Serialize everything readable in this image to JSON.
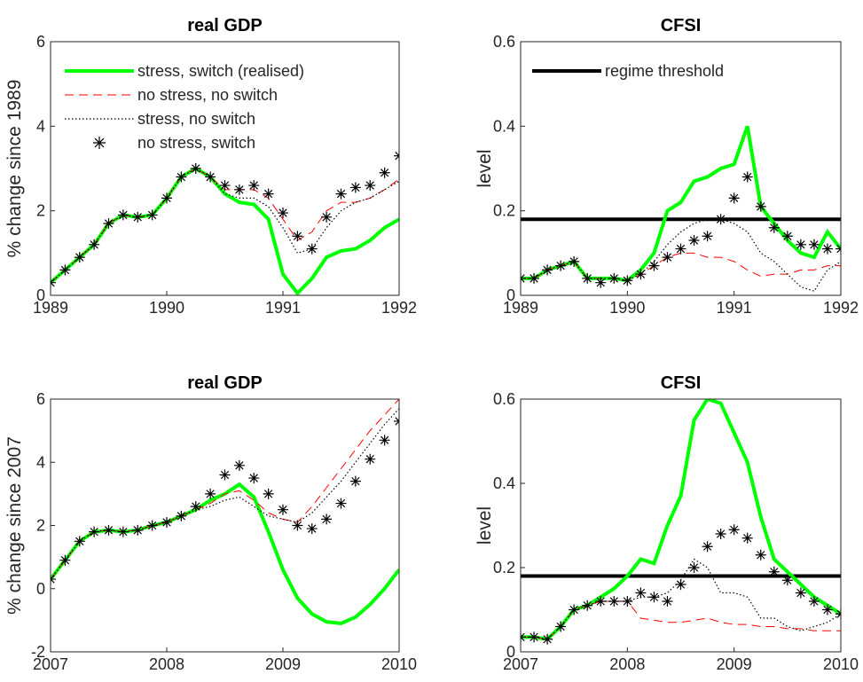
{
  "chart_data": [
    {
      "type": "line",
      "title": "real GDP",
      "ylabel": "% change since 1989",
      "x": [
        1989,
        1989.125,
        1989.25,
        1989.375,
        1989.5,
        1989.625,
        1989.75,
        1989.875,
        1990,
        1990.125,
        1990.25,
        1990.375,
        1990.5,
        1990.625,
        1990.75,
        1990.875,
        1991,
        1991.125,
        1991.25,
        1991.375,
        1991.5,
        1991.625,
        1991.75,
        1991.875,
        1992
      ],
      "xlim": [
        1989,
        1992
      ],
      "xticks": [
        1989,
        1990,
        1991,
        1992
      ],
      "ylim": [
        0,
        6
      ],
      "yticks": [
        0,
        2,
        4,
        6
      ],
      "legend": "upper left",
      "series": [
        {
          "name": "stress, switch (realised)",
          "color": "#00ff00",
          "style": "solid",
          "values": [
            0.3,
            0.6,
            0.9,
            1.2,
            1.7,
            1.9,
            1.85,
            1.9,
            2.3,
            2.8,
            3.0,
            2.8,
            2.4,
            2.2,
            2.15,
            1.8,
            0.5,
            0.05,
            0.4,
            0.9,
            1.05,
            1.1,
            1.3,
            1.6,
            1.8
          ]
        },
        {
          "name": "no stress, no switch",
          "color": "#ff0000",
          "style": "dashed",
          "values": [
            0.3,
            0.6,
            0.9,
            1.2,
            1.7,
            1.9,
            1.85,
            1.9,
            2.3,
            2.8,
            3.0,
            2.8,
            2.5,
            2.5,
            2.5,
            2.3,
            1.8,
            1.3,
            1.5,
            2.0,
            2.2,
            2.2,
            2.3,
            2.5,
            2.75
          ]
        },
        {
          "name": "stress, no switch",
          "color": "#000000",
          "style": "dotted",
          "values": [
            0.3,
            0.6,
            0.9,
            1.2,
            1.7,
            1.9,
            1.85,
            1.9,
            2.3,
            2.8,
            3.0,
            2.8,
            2.4,
            2.3,
            2.3,
            2.1,
            1.6,
            1.0,
            1.1,
            1.6,
            2.0,
            2.2,
            2.3,
            2.5,
            2.7
          ]
        },
        {
          "name": "no stress, switch",
          "color": "#000000",
          "style": "marker",
          "values": [
            0.3,
            0.6,
            0.9,
            1.2,
            1.7,
            1.9,
            1.85,
            1.9,
            2.3,
            2.8,
            3.0,
            2.8,
            2.6,
            2.5,
            2.6,
            2.4,
            1.95,
            1.4,
            1.1,
            1.85,
            2.4,
            2.55,
            2.6,
            2.9,
            3.3
          ]
        }
      ]
    },
    {
      "type": "line",
      "title": "CFSI",
      "ylabel": "level",
      "x": [
        1989,
        1989.125,
        1989.25,
        1989.375,
        1989.5,
        1989.625,
        1989.75,
        1989.875,
        1990,
        1990.125,
        1990.25,
        1990.375,
        1990.5,
        1990.625,
        1990.75,
        1990.875,
        1991,
        1991.125,
        1991.25,
        1991.375,
        1991.5,
        1991.625,
        1991.75,
        1991.875,
        1992
      ],
      "xlim": [
        1989,
        1992
      ],
      "xticks": [
        1989,
        1990,
        1991,
        1992
      ],
      "ylim": [
        0,
        0.6
      ],
      "yticks": [
        0,
        0.2,
        0.4,
        0.6
      ],
      "legend": "upper left",
      "threshold": {
        "name": "regime threshold",
        "value": 0.18,
        "color": "#000000"
      },
      "series": [
        {
          "color": "#00ff00",
          "style": "solid",
          "values": [
            0.04,
            0.04,
            0.06,
            0.07,
            0.08,
            0.04,
            0.04,
            0.04,
            0.035,
            0.06,
            0.1,
            0.2,
            0.22,
            0.27,
            0.28,
            0.3,
            0.31,
            0.4,
            0.21,
            0.17,
            0.13,
            0.1,
            0.09,
            0.15,
            0.11
          ]
        },
        {
          "color": "#ff0000",
          "style": "dashed",
          "values": [
            0.04,
            0.04,
            0.06,
            0.07,
            0.08,
            0.04,
            0.04,
            0.04,
            0.035,
            0.05,
            0.07,
            0.09,
            0.1,
            0.1,
            0.09,
            0.09,
            0.08,
            0.06,
            0.045,
            0.05,
            0.05,
            0.06,
            0.06,
            0.07,
            0.07
          ]
        },
        {
          "color": "#000000",
          "style": "dotted",
          "values": [
            0.04,
            0.04,
            0.06,
            0.07,
            0.08,
            0.04,
            0.04,
            0.04,
            0.035,
            0.05,
            0.08,
            0.12,
            0.15,
            0.17,
            0.18,
            0.18,
            0.17,
            0.15,
            0.1,
            0.08,
            0.05,
            0.02,
            0.01,
            0.06,
            0.08
          ]
        },
        {
          "color": "#000000",
          "style": "marker",
          "values": [
            0.04,
            0.04,
            0.06,
            0.07,
            0.08,
            0.04,
            0.03,
            0.04,
            0.035,
            0.05,
            0.07,
            0.09,
            0.11,
            0.13,
            0.14,
            0.18,
            0.23,
            0.28,
            0.21,
            0.16,
            0.14,
            0.12,
            0.12,
            0.11,
            0.11
          ]
        }
      ]
    },
    {
      "type": "line",
      "title": "real GDP",
      "ylabel": "% change since 2007",
      "x": [
        2007,
        2007.125,
        2007.25,
        2007.375,
        2007.5,
        2007.625,
        2007.75,
        2007.875,
        2008,
        2008.125,
        2008.25,
        2008.375,
        2008.5,
        2008.625,
        2008.75,
        2008.875,
        2009,
        2009.125,
        2009.25,
        2009.375,
        2009.5,
        2009.625,
        2009.75,
        2009.875,
        2010
      ],
      "xlim": [
        2007,
        2010
      ],
      "xticks": [
        2007,
        2008,
        2009,
        2010
      ],
      "ylim": [
        -2,
        6
      ],
      "yticks": [
        -2,
        0,
        2,
        4,
        6
      ],
      "series": [
        {
          "color": "#00ff00",
          "style": "solid",
          "values": [
            0.3,
            0.9,
            1.5,
            1.8,
            1.85,
            1.8,
            1.85,
            2.0,
            2.1,
            2.3,
            2.5,
            2.8,
            3.0,
            3.3,
            2.9,
            1.8,
            0.6,
            -0.3,
            -0.8,
            -1.05,
            -1.1,
            -0.9,
            -0.5,
            0.0,
            0.6
          ]
        },
        {
          "color": "#ff0000",
          "style": "dashed",
          "values": [
            0.3,
            0.9,
            1.5,
            1.8,
            1.85,
            1.8,
            1.85,
            2.0,
            2.1,
            2.3,
            2.5,
            2.7,
            3.0,
            3.1,
            2.8,
            2.4,
            2.2,
            2.1,
            2.6,
            3.2,
            3.8,
            4.4,
            5.0,
            5.5,
            6.0
          ]
        },
        {
          "color": "#000000",
          "style": "dotted",
          "values": [
            0.3,
            0.9,
            1.5,
            1.8,
            1.85,
            1.8,
            1.85,
            2.0,
            2.1,
            2.3,
            2.5,
            2.6,
            2.8,
            2.9,
            2.6,
            2.3,
            2.2,
            2.1,
            2.4,
            2.9,
            3.4,
            4.0,
            4.6,
            5.2,
            5.7
          ]
        },
        {
          "color": "#000000",
          "style": "marker",
          "values": [
            0.3,
            0.9,
            1.5,
            1.8,
            1.85,
            1.8,
            1.85,
            2.0,
            2.1,
            2.3,
            2.6,
            3.0,
            3.6,
            3.9,
            3.5,
            3.0,
            2.5,
            2.0,
            1.9,
            2.2,
            2.7,
            3.4,
            4.1,
            4.7,
            5.3
          ]
        }
      ]
    },
    {
      "type": "line",
      "title": "CFSI",
      "ylabel": "level",
      "x": [
        2007,
        2007.125,
        2007.25,
        2007.375,
        2007.5,
        2007.625,
        2007.75,
        2007.875,
        2008,
        2008.125,
        2008.25,
        2008.375,
        2008.5,
        2008.625,
        2008.75,
        2008.875,
        2009,
        2009.125,
        2009.25,
        2009.375,
        2009.5,
        2009.625,
        2009.75,
        2009.875,
        2010
      ],
      "xlim": [
        2007,
        2010
      ],
      "xticks": [
        2007,
        2008,
        2009,
        2010
      ],
      "ylim": [
        0,
        0.6
      ],
      "yticks": [
        0,
        0.2,
        0.4,
        0.6
      ],
      "threshold": {
        "value": 0.18,
        "color": "#000000"
      },
      "series": [
        {
          "color": "#00ff00",
          "style": "solid",
          "values": [
            0.035,
            0.035,
            0.03,
            0.06,
            0.1,
            0.11,
            0.13,
            0.15,
            0.18,
            0.22,
            0.21,
            0.3,
            0.37,
            0.55,
            0.6,
            0.59,
            0.52,
            0.45,
            0.32,
            0.22,
            0.19,
            0.16,
            0.13,
            0.11,
            0.09
          ]
        },
        {
          "color": "#ff0000",
          "style": "dashed",
          "values": [
            0.035,
            0.035,
            0.03,
            0.06,
            0.1,
            0.11,
            0.12,
            0.12,
            0.12,
            0.08,
            0.075,
            0.07,
            0.07,
            0.075,
            0.08,
            0.07,
            0.065,
            0.065,
            0.06,
            0.06,
            0.055,
            0.055,
            0.05,
            0.05,
            0.05
          ]
        },
        {
          "color": "#000000",
          "style": "dotted",
          "values": [
            0.035,
            0.035,
            0.03,
            0.06,
            0.1,
            0.11,
            0.12,
            0.12,
            0.12,
            0.13,
            0.13,
            0.14,
            0.17,
            0.22,
            0.2,
            0.14,
            0.14,
            0.13,
            0.08,
            0.08,
            0.06,
            0.05,
            0.06,
            0.07,
            0.09
          ]
        },
        {
          "color": "#000000",
          "style": "marker",
          "values": [
            0.035,
            0.035,
            0.03,
            0.06,
            0.1,
            0.11,
            0.12,
            0.12,
            0.12,
            0.14,
            0.13,
            0.12,
            0.16,
            0.2,
            0.25,
            0.28,
            0.29,
            0.27,
            0.23,
            0.19,
            0.17,
            0.14,
            0.12,
            0.1,
            0.09
          ]
        }
      ]
    }
  ]
}
